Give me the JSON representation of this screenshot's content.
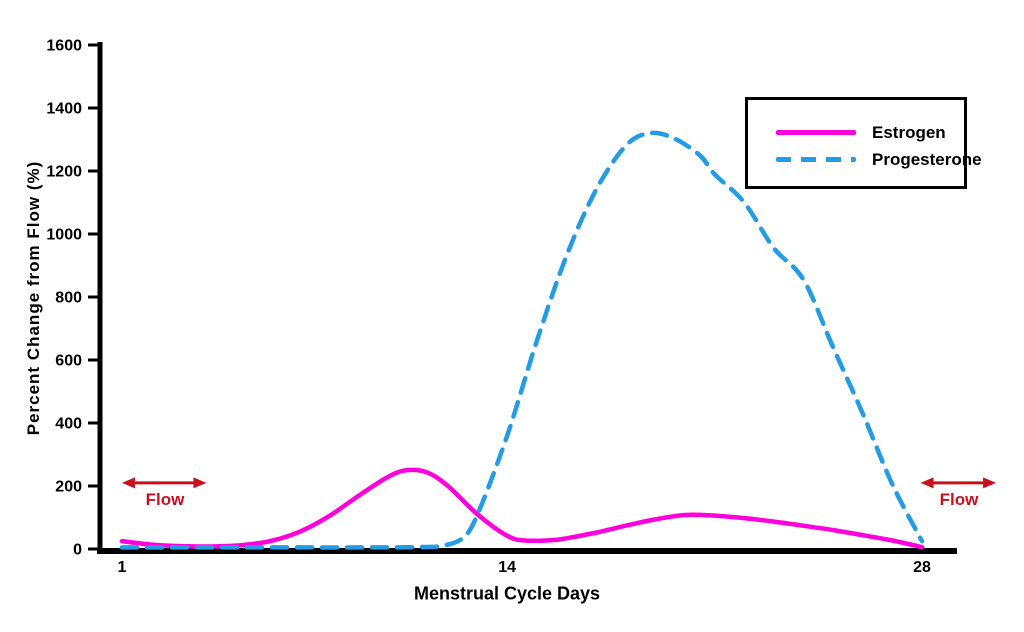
{
  "chart_data": {
    "type": "line",
    "title": "",
    "xlabel": "Menstrual Cycle Days",
    "ylabel": "Percent Change from Flow (%)",
    "xlim": [
      1,
      28
    ],
    "ylim": [
      0,
      1600
    ],
    "x_ticks": [
      "1",
      "14",
      "28"
    ],
    "x_tick_values": [
      1,
      14,
      28
    ],
    "y_ticks": [
      0,
      200,
      400,
      600,
      800,
      1000,
      1200,
      1400,
      1600
    ],
    "grid": false,
    "legend_position": "top-right",
    "axis_color": "#000000",
    "annotation_color": "#C8111C",
    "series": [
      {
        "name": "Estrogen",
        "color": "#FF00DC",
        "style": "solid",
        "points": [
          [
            1,
            25
          ],
          [
            2,
            14
          ],
          [
            3,
            9
          ],
          [
            4,
            8
          ],
          [
            5,
            12
          ],
          [
            6,
            25
          ],
          [
            7,
            55
          ],
          [
            8,
            105
          ],
          [
            9,
            170
          ],
          [
            10,
            230
          ],
          [
            10.6,
            250
          ],
          [
            11.3,
            243
          ],
          [
            12,
            200
          ],
          [
            13,
            110
          ],
          [
            14,
            42
          ],
          [
            14.6,
            27
          ],
          [
            15.5,
            28
          ],
          [
            16,
            34
          ],
          [
            17,
            52
          ],
          [
            18,
            74
          ],
          [
            19,
            94
          ],
          [
            20,
            108
          ],
          [
            21,
            106
          ],
          [
            22,
            98
          ],
          [
            23,
            87
          ],
          [
            24,
            74
          ],
          [
            25,
            60
          ],
          [
            26,
            44
          ],
          [
            27,
            27
          ],
          [
            28,
            6
          ]
        ]
      },
      {
        "name": "Progesterone",
        "color": "#249BE5",
        "style": "dashed",
        "points": [
          [
            1,
            5
          ],
          [
            3,
            5
          ],
          [
            5,
            5
          ],
          [
            7,
            5
          ],
          [
            9,
            5
          ],
          [
            11,
            6
          ],
          [
            11.8,
            10
          ],
          [
            12.5,
            35
          ],
          [
            13,
            110
          ],
          [
            14,
            360
          ],
          [
            15,
            660
          ],
          [
            16,
            930
          ],
          [
            17,
            1140
          ],
          [
            18,
            1280
          ],
          [
            18.8,
            1320
          ],
          [
            19.6,
            1305
          ],
          [
            20.5,
            1250
          ],
          [
            21,
            1190
          ],
          [
            22,
            1100
          ],
          [
            23,
            955
          ],
          [
            24,
            855
          ],
          [
            25,
            640
          ],
          [
            26,
            430
          ],
          [
            27,
            205
          ],
          [
            28,
            25
          ]
        ]
      }
    ],
    "annotations": [
      {
        "label": "Flow",
        "arrow_day_start": 1.0,
        "arrow_day_end": 3.85,
        "label_day_center": 2.45,
        "value": 210
      },
      {
        "label": "Flow",
        "arrow_day_start": 27.95,
        "arrow_day_end": 30.5,
        "label_day_center": 29.25,
        "value": 210
      }
    ]
  }
}
